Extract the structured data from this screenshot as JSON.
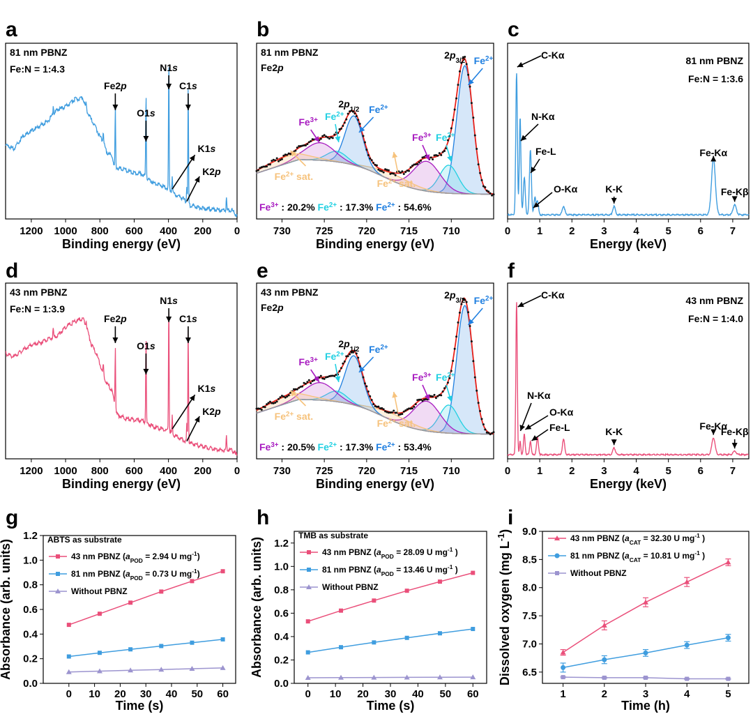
{
  "colors": {
    "blue": "#3f9ddf",
    "pink": "#ea4f7a",
    "lavender": "#9c94cf",
    "fit_red": "#e8221a",
    "fe3": "#a81cc0",
    "fe2_cyan": "#22d0e2",
    "fe2_blue": "#1f7fe0",
    "sat": "#f6c27c"
  },
  "panels": {
    "a": {
      "letter": "a"
    },
    "b": {
      "letter": "b"
    },
    "c": {
      "letter": "c"
    },
    "d": {
      "letter": "d"
    },
    "e": {
      "letter": "e"
    },
    "f": {
      "letter": "f"
    },
    "g": {
      "letter": "g"
    },
    "h": {
      "letter": "h"
    },
    "i": {
      "letter": "i"
    }
  },
  "chart_data": [
    {
      "id": "a",
      "type": "line",
      "xlabel": "Binding energy (eV)",
      "xticks": [
        "1200",
        "1000",
        "800",
        "600",
        "400",
        "200",
        "0"
      ],
      "xlim": [
        1350,
        0
      ],
      "reversed_x": true,
      "labels": [
        "81 nm PBNZ",
        "Fe:N = 1:4.3"
      ],
      "peaks": [
        {
          "label": "Fe2p",
          "be": 710
        },
        {
          "label": "O1s",
          "be": 531
        },
        {
          "label": "N1s",
          "be": 398
        },
        {
          "label": "C1s",
          "be": 285
        },
        {
          "label": "K1s",
          "be": 378
        },
        {
          "label": "K2p",
          "be": 293
        }
      ]
    },
    {
      "id": "b",
      "type": "line",
      "xlabel": "Binding energy (eV)",
      "xticks": [
        "730",
        "725",
        "720",
        "715",
        "710"
      ],
      "xlim": [
        733,
        705
      ],
      "reversed_x": true,
      "labels": [
        "81 nm PBNZ",
        "Fe2p"
      ],
      "annotations": [
        "2p1/2",
        "2p3/2",
        "Fe3+",
        "Fe2+",
        "Fe2+ sat."
      ],
      "fractions": {
        "fe3": "20.2%",
        "fe2_cyan": "17.3%",
        "fe2_blue": "54.6%"
      }
    },
    {
      "id": "c",
      "type": "line",
      "xlabel": "Energy (keV)",
      "xticks": [
        "0",
        "1",
        "2",
        "3",
        "4",
        "5",
        "6",
        "7"
      ],
      "xlim": [
        0,
        7.5
      ],
      "labels": [
        "81 nm PBNZ",
        "Fe:N = 1:3.6"
      ],
      "peaks": [
        {
          "label": "C-Kα",
          "kev": 0.28
        },
        {
          "label": "N-Kα",
          "kev": 0.39
        },
        {
          "label": "Fe-L",
          "kev": 0.71
        },
        {
          "label": "O-Kα",
          "kev": 0.52
        },
        {
          "label": "K-K",
          "kev": 3.31
        },
        {
          "label": "Fe-Kα",
          "kev": 6.4
        },
        {
          "label": "Fe-Kβ",
          "kev": 7.06
        }
      ]
    },
    {
      "id": "d",
      "type": "line",
      "xlabel": "Binding energy (eV)",
      "xticks": [
        "1200",
        "1000",
        "800",
        "600",
        "400",
        "200",
        "0"
      ],
      "xlim": [
        1350,
        0
      ],
      "reversed_x": true,
      "labels": [
        "43 nm PBNZ",
        "Fe:N = 1:3.9"
      ],
      "peaks": [
        {
          "label": "Fe2p",
          "be": 710
        },
        {
          "label": "O1s",
          "be": 531
        },
        {
          "label": "N1s",
          "be": 398
        },
        {
          "label": "C1s",
          "be": 285
        },
        {
          "label": "K1s",
          "be": 378
        },
        {
          "label": "K2p",
          "be": 293
        }
      ]
    },
    {
      "id": "e",
      "type": "line",
      "xlabel": "Binding energy (eV)",
      "xticks": [
        "730",
        "725",
        "720",
        "715",
        "710"
      ],
      "xlim": [
        733,
        705
      ],
      "reversed_x": true,
      "labels": [
        "43 nm PBNZ",
        "Fe2p"
      ],
      "annotations": [
        "2p1/2",
        "2p3/2",
        "Fe3+",
        "Fe2+",
        "Fe2+ sat."
      ],
      "fractions": {
        "fe3": "20.5%",
        "fe2_cyan": "17.3%",
        "fe2_blue": "53.4%"
      }
    },
    {
      "id": "f",
      "type": "line",
      "xlabel": "Energy (keV)",
      "xticks": [
        "0",
        "1",
        "2",
        "3",
        "4",
        "5",
        "6",
        "7"
      ],
      "xlim": [
        0,
        7.5
      ],
      "labels": [
        "43 nm PBNZ",
        "Fe:N = 1:4.0"
      ],
      "peaks": [
        {
          "label": "C-Kα",
          "kev": 0.28
        },
        {
          "label": "N-Kα",
          "kev": 0.39
        },
        {
          "label": "O-Kα",
          "kev": 0.52
        },
        {
          "label": "Fe-L",
          "kev": 0.71
        },
        {
          "label": "K-K",
          "kev": 3.31
        },
        {
          "label": "Fe-Kα",
          "kev": 6.4
        },
        {
          "label": "Fe-Kβ",
          "kev": 7.06
        }
      ]
    },
    {
      "id": "g",
      "type": "line",
      "xlabel": "Time (s)",
      "ylabel": "Absorbance (arb. units)",
      "xlim": [
        -10,
        65
      ],
      "ylim": [
        0,
        1.2
      ],
      "xticks": [
        0,
        10,
        20,
        30,
        40,
        50,
        60
      ],
      "yticks": [
        "0.0",
        "0.2",
        "0.4",
        "0.6",
        "0.8",
        "1.0",
        "1.2"
      ],
      "legend_title": "ABTS as substrate",
      "x": [
        0,
        12,
        24,
        36,
        48,
        60
      ],
      "series": [
        {
          "label_main": "43 nm PBNZ (",
          "label_sym": "a",
          "label_sub": "POD",
          "label_val": " = 2.94 U mg",
          "label_sup": "-1",
          "label_end": ")",
          "color": "pink",
          "marker": "square",
          "values": [
            0.475,
            0.565,
            0.655,
            0.745,
            0.83,
            0.91
          ]
        },
        {
          "label_main": "81 nm PBNZ (",
          "label_sym": "a",
          "label_sub": "POD",
          "label_val": " = 0.73 U mg",
          "label_sup": "-1",
          "label_end": ")",
          "color": "blue",
          "marker": "square",
          "values": [
            0.218,
            0.248,
            0.276,
            0.303,
            0.33,
            0.357
          ]
        },
        {
          "label_main": "Without PBNZ",
          "color": "lavender",
          "marker": "triangle",
          "values": [
            0.092,
            0.099,
            0.106,
            0.112,
            0.119,
            0.125
          ]
        }
      ]
    },
    {
      "id": "h",
      "type": "line",
      "xlabel": "Time (s)",
      "ylabel": "Absorbance (arb. units)",
      "xlim": [
        -5,
        65
      ],
      "ylim": [
        0,
        1.3
      ],
      "xticks": [
        0,
        10,
        20,
        30,
        40,
        50,
        60
      ],
      "yticks": [
        "0.0",
        "0.2",
        "0.4",
        "0.6",
        "0.8",
        "1.0",
        "1.2"
      ],
      "legend_title": "TMB as substrate",
      "x": [
        0,
        12,
        24,
        36,
        48,
        60
      ],
      "series": [
        {
          "label_main": "43 nm PBNZ (",
          "label_sym": "a",
          "label_sub": "POD",
          "label_val": " = 28.09 U mg",
          "label_sup": "-1",
          "label_end": " )",
          "color": "pink",
          "marker": "square",
          "values": [
            0.53,
            0.622,
            0.708,
            0.792,
            0.87,
            0.945
          ]
        },
        {
          "label_main": "81 nm PBNZ (",
          "label_sym": "a",
          "label_sub": "POD",
          "label_val": " = 13.46 U mg",
          "label_sup": "-1",
          "label_end": " )",
          "color": "blue",
          "marker": "square",
          "values": [
            0.265,
            0.309,
            0.35,
            0.389,
            0.428,
            0.465
          ]
        },
        {
          "label_main": "Without PBNZ",
          "color": "lavender",
          "marker": "triangle",
          "values": [
            0.048,
            0.049,
            0.05,
            0.051,
            0.052,
            0.053
          ]
        }
      ]
    },
    {
      "id": "i",
      "type": "line",
      "xlabel": "Time (h)",
      "ylabel": "Dissolved oxygen (mg L",
      "ylabel_sup": "-1",
      "ylabel_end": ")",
      "xlim": [
        0.5,
        5.5
      ],
      "ylim": [
        6.3,
        9.0
      ],
      "xticks": [
        1,
        2,
        3,
        4,
        5
      ],
      "yticks": [
        "6.5",
        "7.0",
        "7.5",
        "8.0",
        "8.5",
        "9.0"
      ],
      "x": [
        1,
        2,
        3,
        4,
        5
      ],
      "series": [
        {
          "label_main": "43 nm PBNZ (",
          "label_sym": "a",
          "label_sub": "CAT",
          "label_val": " = 32.30 U mg",
          "label_sup": "-1",
          "label_end": " )",
          "color": "pink",
          "marker": "triangle",
          "values": [
            6.85,
            7.33,
            7.74,
            8.1,
            8.45
          ],
          "errors": [
            0.05,
            0.08,
            0.08,
            0.08,
            0.06
          ]
        },
        {
          "label_main": "81 nm PBNZ (",
          "label_sym": "a",
          "label_sub": "CAT",
          "label_val": " = 10.81 U mg",
          "label_sup": "-1",
          "label_end": " )",
          "color": "blue",
          "marker": "circle",
          "values": [
            6.58,
            6.72,
            6.84,
            6.98,
            7.11
          ],
          "errors": [
            0.08,
            0.07,
            0.06,
            0.06,
            0.06
          ]
        },
        {
          "label_main": "Without PBNZ",
          "color": "lavender",
          "marker": "square",
          "values": [
            6.41,
            6.4,
            6.4,
            6.38,
            6.38
          ],
          "errors": [
            0.01,
            0.01,
            0.01,
            0.01,
            0.01
          ]
        }
      ]
    }
  ]
}
